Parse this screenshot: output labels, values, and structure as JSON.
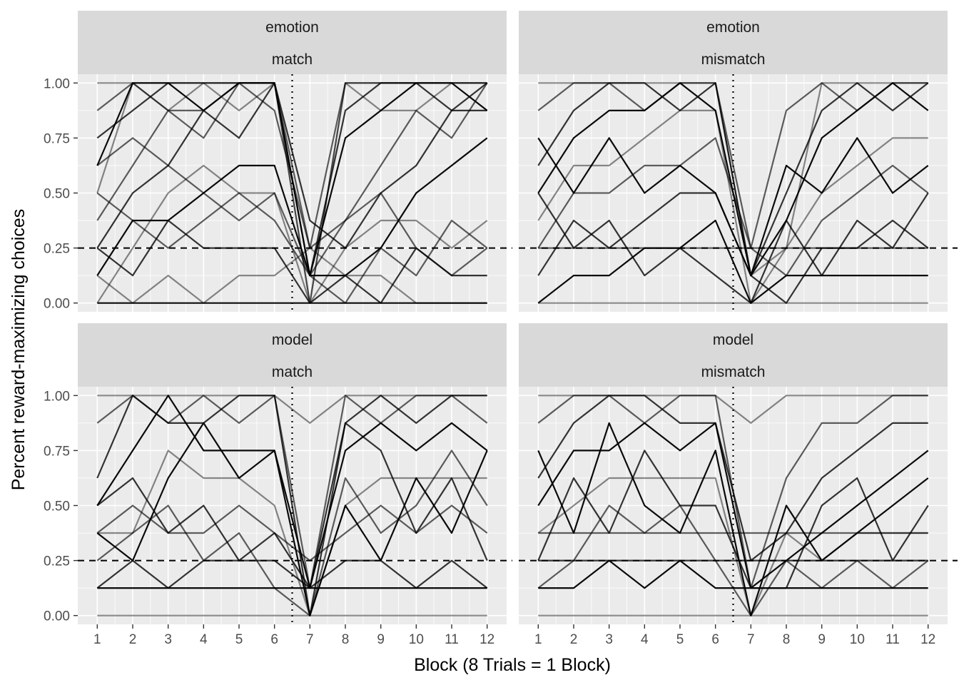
{
  "chart_data": {
    "type": "line",
    "xlabel": "Block (8 Trials = 1 Block)",
    "ylabel": "Percent reward-maximizing choices",
    "x_ticks": [
      "1",
      "2",
      "3",
      "4",
      "5",
      "6",
      "7",
      "8",
      "9",
      "10",
      "11",
      "12"
    ],
    "y_ticks": [
      "0.00",
      "0.25",
      "0.50",
      "0.75",
      "1.00"
    ],
    "xlim": [
      0.45,
      12.55
    ],
    "ylim": [
      -0.04,
      1.04
    ],
    "grid": true,
    "reference_lines": {
      "horizontal_dashed_y": 0.25,
      "vertical_dotted_x": 6.5
    },
    "line_color": "#000000",
    "panel_background": "#ebebeb",
    "strip_background": "#d9d9d9",
    "panels": [
      {
        "strip": [
          "emotion",
          "match"
        ],
        "series": [
          {
            "values": [
              1,
              1,
              1,
              1,
              1,
              1,
              0,
              1,
              1,
              1,
              1,
              1
            ]
          },
          {
            "values": [
              0.875,
              1,
              0.875,
              0.875,
              1,
              1,
              0.25,
              1,
              1,
              1,
              1,
              1
            ]
          },
          {
            "values": [
              0.75,
              0.875,
              1,
              1,
              1,
              1,
              0.125,
              0.875,
              1,
              1,
              0.875,
              1
            ]
          },
          {
            "values": [
              0.625,
              1,
              1,
              0.875,
              1,
              1,
              0.125,
              0.75,
              0.875,
              1,
              1,
              0.875
            ]
          },
          {
            "values": [
              0.5,
              1,
              0.875,
              1,
              0.875,
              1,
              0,
              1,
              0.875,
              0.875,
              1,
              1
            ]
          },
          {
            "values": [
              0.375,
              0.625,
              0.875,
              0.75,
              1,
              0.875,
              0.25,
              0.375,
              0.625,
              0.875,
              0.75,
              1
            ]
          },
          {
            "values": [
              0.25,
              0.5,
              0.625,
              0.875,
              0.75,
              1,
              0.375,
              0.25,
              0.5,
              0.625,
              0.875,
              0.875
            ]
          },
          {
            "values": [
              0.125,
              0.375,
              0.375,
              0.5,
              0.625,
              0.625,
              0.125,
              0.125,
              0.25,
              0.5,
              0.625,
              0.75
            ]
          },
          {
            "values": [
              0,
              0.25,
              0.5,
              0.625,
              0.5,
              0.5,
              0,
              0.25,
              0.375,
              0.375,
              0.25,
              0.375
            ]
          },
          {
            "values": [
              0.5,
              0.375,
              0.25,
              0.375,
              0.5,
              0.375,
              0.125,
              0,
              0.25,
              0.125,
              0.375,
              0.25
            ]
          },
          {
            "values": [
              0.25,
              0.125,
              0.375,
              0.25,
              0.25,
              0.25,
              0,
              0.125,
              0,
              0.25,
              0.125,
              0.125
            ]
          },
          {
            "values": [
              0,
              0,
              0,
              0,
              0,
              0,
              0,
              0,
              0,
              0,
              0,
              0
            ]
          },
          {
            "values": [
              0.125,
              0,
              0.125,
              0,
              0.125,
              0.125,
              0.25,
              0.125,
              0.125,
              0,
              0,
              0
            ]
          },
          {
            "values": [
              0.625,
              0.75,
              0.625,
              0.5,
              0.375,
              0.5,
              0.125,
              0.375,
              0.5,
              0.25,
              0.125,
              0.25
            ]
          }
        ]
      },
      {
        "strip": [
          "emotion",
          "mismatch"
        ],
        "series": [
          {
            "values": [
              1,
              1,
              1,
              1,
              1,
              1,
              0.125,
              0.25,
              1,
              1,
              1,
              1
            ]
          },
          {
            "values": [
              0.875,
              1,
              1,
              0.875,
              1,
              1,
              0.25,
              0.875,
              1,
              0.875,
              1,
              1
            ]
          },
          {
            "values": [
              0.625,
              0.875,
              1,
              1,
              0.875,
              1,
              0.125,
              0.5,
              0.875,
              1,
              0.875,
              1
            ]
          },
          {
            "values": [
              0.5,
              0.75,
              0.875,
              0.875,
              1,
              0.875,
              0.125,
              0.375,
              0.75,
              0.875,
              1,
              0.875
            ]
          },
          {
            "values": [
              0.375,
              0.625,
              0.625,
              0.75,
              0.875,
              0.875,
              0,
              0.25,
              0.5,
              0.625,
              0.75,
              0.75
            ]
          },
          {
            "values": [
              0.25,
              0.5,
              0.5,
              0.625,
              0.625,
              0.75,
              0.25,
              0.125,
              0.375,
              0.5,
              0.625,
              0.5
            ]
          },
          {
            "values": [
              0.125,
              0.375,
              0.25,
              0.375,
              0.5,
              0.5,
              0.125,
              0,
              0.25,
              0.25,
              0.375,
              0.25
            ]
          },
          {
            "values": [
              0,
              0.125,
              0.125,
              0.25,
              0.25,
              0.375,
              0,
              0.125,
              0.125,
              0.125,
              0.125,
              0.125
            ]
          },
          {
            "values": [
              0,
              0,
              0,
              0,
              0,
              0,
              0,
              0,
              0,
              0,
              0,
              0
            ]
          },
          {
            "values": [
              0.25,
              0.25,
              0.25,
              0.25,
              0.25,
              0.25,
              0.25,
              0.25,
              0.25,
              0.25,
              0.25,
              0.25
            ]
          },
          {
            "values": [
              0.5,
              0.25,
              0.375,
              0.125,
              0.25,
              0.125,
              0,
              0.375,
              0.125,
              0.375,
              0.25,
              0.5
            ]
          },
          {
            "values": [
              0.75,
              0.5,
              0.75,
              0.5,
              0.625,
              0.5,
              0.125,
              0.625,
              0.5,
              0.75,
              0.5,
              0.625
            ]
          }
        ]
      },
      {
        "strip": [
          "model",
          "match"
        ],
        "series": [
          {
            "values": [
              1,
              1,
              1,
              1,
              1,
              1,
              0.875,
              1,
              1,
              1,
              1,
              1
            ]
          },
          {
            "values": [
              0.875,
              1,
              0.875,
              1,
              0.875,
              1,
              0.125,
              1,
              0.875,
              1,
              1,
              0.875
            ]
          },
          {
            "values": [
              0.625,
              1,
              0.875,
              0.875,
              1,
              1,
              0,
              0.875,
              1,
              0.875,
              1,
              1
            ]
          },
          {
            "values": [
              0.5,
              0.75,
              1,
              0.75,
              0.75,
              0.75,
              0.125,
              0.75,
              0.875,
              0.75,
              0.875,
              0.75
            ]
          },
          {
            "values": [
              0.375,
              0.375,
              0.75,
              0.625,
              0.625,
              0.5,
              0,
              0.5,
              0.625,
              0.625,
              0.625,
              0.625
            ]
          },
          {
            "values": [
              0.375,
              0.5,
              0.375,
              0.375,
              0.5,
              0.375,
              0.25,
              0.375,
              0.5,
              0.375,
              0.5,
              0.375
            ]
          },
          {
            "values": [
              0.125,
              0.25,
              0.125,
              0.25,
              0.25,
              0.25,
              0.125,
              0.25,
              0.25,
              0.125,
              0.25,
              0.125
            ]
          },
          {
            "values": [
              0.125,
              0.125,
              0.125,
              0.125,
              0.125,
              0.125,
              0.125,
              0.125,
              0.125,
              0.125,
              0.125,
              0.125
            ]
          },
          {
            "values": [
              0,
              0,
              0,
              0,
              0,
              0,
              0,
              0,
              0,
              0,
              0,
              0
            ]
          },
          {
            "values": [
              0.25,
              0.375,
              0.5,
              0.25,
              0.375,
              0.125,
              0,
              0.625,
              0.375,
              0.5,
              0.75,
              0.5
            ]
          },
          {
            "values": [
              0.5,
              0.625,
              0.375,
              0.5,
              0.25,
              0.375,
              0.125,
              0.875,
              0.75,
              0.375,
              0.625,
              0.25
            ]
          },
          {
            "values": [
              0.375,
              0.25,
              0.625,
              0.875,
              0.625,
              0.75,
              0,
              0.5,
              0.25,
              0.625,
              0.375,
              0.75
            ]
          }
        ]
      },
      {
        "strip": [
          "model",
          "mismatch"
        ],
        "series": [
          {
            "values": [
              1,
              1,
              1,
              1,
              1,
              1,
              0.875,
              1,
              1,
              1,
              1,
              1
            ]
          },
          {
            "values": [
              0.875,
              1,
              1,
              0.875,
              1,
              1,
              0.125,
              0.625,
              0.875,
              0.875,
              1,
              1
            ]
          },
          {
            "values": [
              0.625,
              0.875,
              1,
              1,
              0.875,
              0.875,
              0.25,
              0.375,
              0.625,
              0.75,
              0.875,
              0.875
            ]
          },
          {
            "values": [
              0.5,
              0.75,
              0.75,
              0.875,
              0.75,
              0.875,
              0.125,
              0.25,
              0.375,
              0.5,
              0.625,
              0.75
            ]
          },
          {
            "values": [
              0.375,
              0.5,
              0.625,
              0.625,
              0.625,
              0.625,
              0,
              0.375,
              0.25,
              0.375,
              0.375,
              0.375
            ]
          },
          {
            "values": [
              0.375,
              0.375,
              0.375,
              0.375,
              0.375,
              0.375,
              0.375,
              0.375,
              0.375,
              0.375,
              0.375,
              0.375
            ]
          },
          {
            "values": [
              0.25,
              0.25,
              0.25,
              0.25,
              0.25,
              0.25,
              0.25,
              0.25,
              0.25,
              0.25,
              0.25,
              0.25
            ]
          },
          {
            "values": [
              0.125,
              0.125,
              0.25,
              0.125,
              0.25,
              0.125,
              0.125,
              0.125,
              0.125,
              0.125,
              0.125,
              0.125
            ]
          },
          {
            "values": [
              0,
              0,
              0,
              0,
              0,
              0,
              0,
              0,
              0,
              0,
              0,
              0
            ]
          },
          {
            "values": [
              0.125,
              0.25,
              0.5,
              0.375,
              0.5,
              0.25,
              0,
              0.25,
              0.125,
              0.25,
              0.125,
              0.25
            ]
          },
          {
            "values": [
              0.25,
              0.625,
              0.375,
              0.75,
              0.5,
              0.5,
              0.125,
              0.125,
              0.5,
              0.625,
              0.25,
              0.5
            ]
          },
          {
            "values": [
              0.75,
              0.375,
              0.875,
              0.5,
              0.375,
              0.75,
              0,
              0.5,
              0.25,
              0.375,
              0.5,
              0.625
            ]
          }
        ]
      }
    ]
  }
}
